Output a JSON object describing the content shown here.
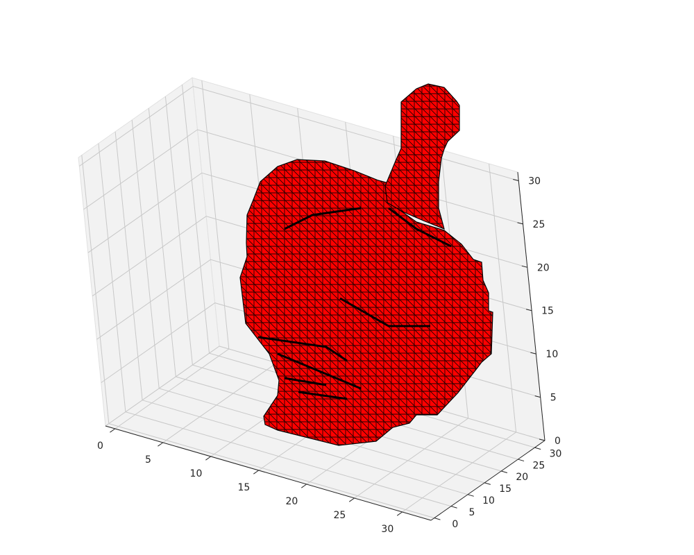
{
  "colors": {
    "mesh_face": "#ff0000",
    "mesh_edge": "#000000",
    "pane": "#f2f2f2",
    "grid": "#c8c8c8",
    "text": "#222222"
  },
  "chart_data": {
    "type": "3d-trisurf",
    "title": "",
    "xlabel": "",
    "ylabel": "",
    "zlabel": "",
    "xlim": [
      -1,
      33
    ],
    "ylim": [
      -1,
      33
    ],
    "zlim": [
      0,
      31
    ],
    "xticks": [
      0,
      5,
      10,
      15,
      20,
      25,
      30
    ],
    "yticks": [
      0,
      5,
      10,
      15,
      20,
      25,
      30
    ],
    "zticks": [
      0,
      5,
      10,
      15,
      20,
      25,
      30
    ],
    "grid": true,
    "series": [
      {
        "kind": "triangulated surface mesh",
        "face_color": "#ff0000",
        "edge_color": "#000000"
      }
    ]
  }
}
